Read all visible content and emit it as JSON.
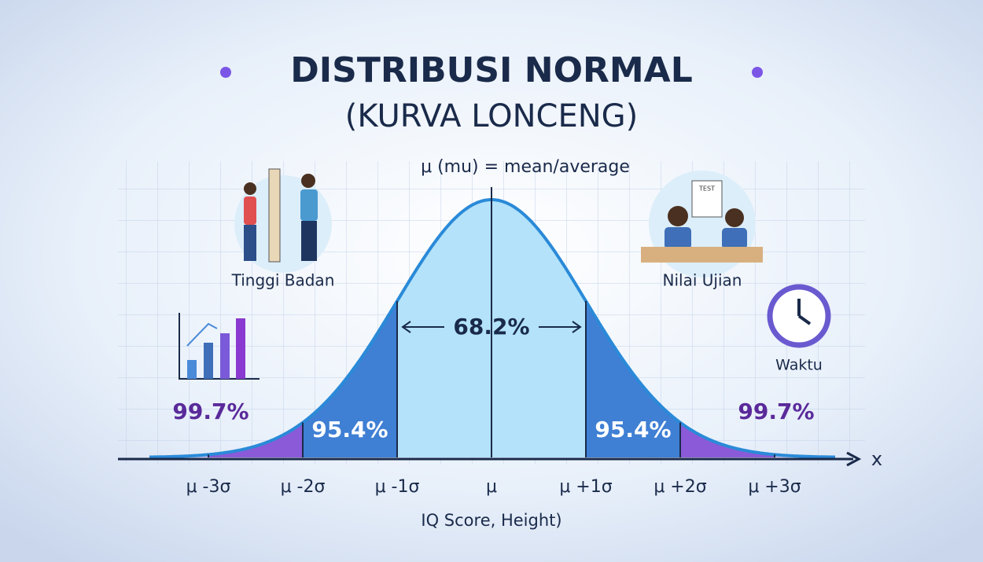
{
  "title": {
    "line1": "DISTRIBUSI NORMAL",
    "line2": "(KURVA LONCENG)"
  },
  "mean_label": "μ (mu) = mean/average",
  "illustrations": [
    {
      "label": "Tinggi Badan"
    },
    {
      "label": "Nilai Ujian",
      "sheet": "TEST"
    },
    {
      "label": "Waktu"
    }
  ],
  "regions": {
    "center": "68.2%",
    "left_2": "95.4%",
    "right_2": "95.4%",
    "left_3": "99.7%",
    "right_3": "99.7%"
  },
  "axis": {
    "name": "x",
    "ticks": [
      "μ -3σ",
      "μ -2σ",
      "μ -1σ",
      "μ",
      "μ +1σ",
      "μ +2σ",
      "μ +3σ"
    ],
    "caption": "IQ Score, Height)"
  }
}
